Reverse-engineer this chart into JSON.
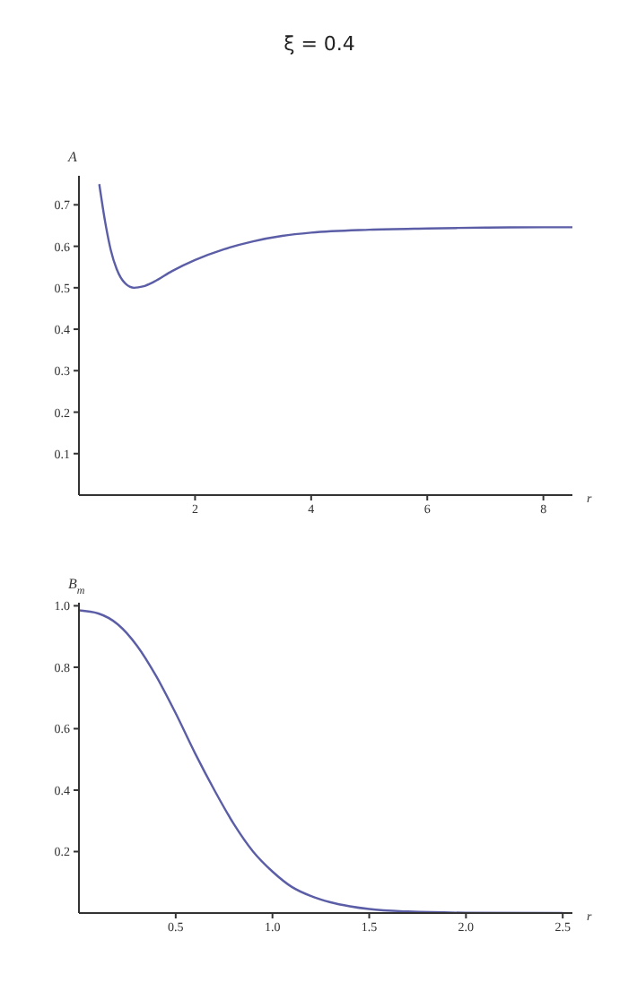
{
  "chart_data": [
    {
      "type": "line",
      "title": "ξ = 0.4",
      "xlabel": "r",
      "ylabel": "A",
      "x": [
        0.35,
        0.45,
        0.55,
        0.65,
        0.8,
        0.95,
        1.1,
        1.3,
        1.6,
        2,
        2.5,
        3,
        3.5,
        4,
        5,
        6,
        7,
        8,
        8.5
      ],
      "series": [
        {
          "color": "#5b5ea6",
          "values": [
            0.75,
            0.66,
            0.59,
            0.545,
            0.51,
            0.5,
            0.503,
            0.515,
            0.54,
            0.567,
            0.593,
            0.612,
            0.625,
            0.633,
            0.64,
            0.643,
            0.645,
            0.646,
            0.646
          ]
        }
      ],
      "xlim": [
        0,
        8.5
      ],
      "xticks": [
        2,
        4,
        6,
        8
      ],
      "ylim": [
        0,
        0.77
      ],
      "yticks": [
        0.1,
        0.2,
        0.3,
        0.4,
        0.5,
        0.6,
        0.7
      ],
      "grid": false,
      "legend": false,
      "marker": "none",
      "line_style": "solid"
    },
    {
      "type": "line",
      "xlabel": "r",
      "ylabel": "B$_{m}$",
      "x": [
        0,
        0.1,
        0.2,
        0.3,
        0.4,
        0.5,
        0.6,
        0.7,
        0.8,
        0.9,
        1,
        1.1,
        1.2,
        1.3,
        1.4,
        1.5,
        1.7,
        2,
        2.5
      ],
      "series": [
        {
          "color": "#5b5ea6",
          "values": [
            0.985,
            0.975,
            0.94,
            0.87,
            0.77,
            0.65,
            0.52,
            0.4,
            0.29,
            0.2,
            0.135,
            0.085,
            0.055,
            0.035,
            0.022,
            0.013,
            0.005,
            0.001,
            0
          ]
        }
      ],
      "xlim": [
        0,
        2.55
      ],
      "xticks": [
        {
          "value": 0.5,
          "label": "0.5"
        },
        {
          "value": 1,
          "label": "1.0"
        },
        {
          "value": 1.5,
          "label": "1.5"
        },
        {
          "value": 2,
          "label": "2.0"
        },
        {
          "value": 2.5,
          "label": "2.5"
        }
      ],
      "ylim": [
        0,
        1.01
      ],
      "yticks": [
        0.2,
        0.4,
        0.6,
        0.8,
        {
          "value": 1,
          "label": "1.0"
        }
      ],
      "grid": false,
      "legend": false,
      "marker": "none",
      "line_style": "solid"
    }
  ]
}
